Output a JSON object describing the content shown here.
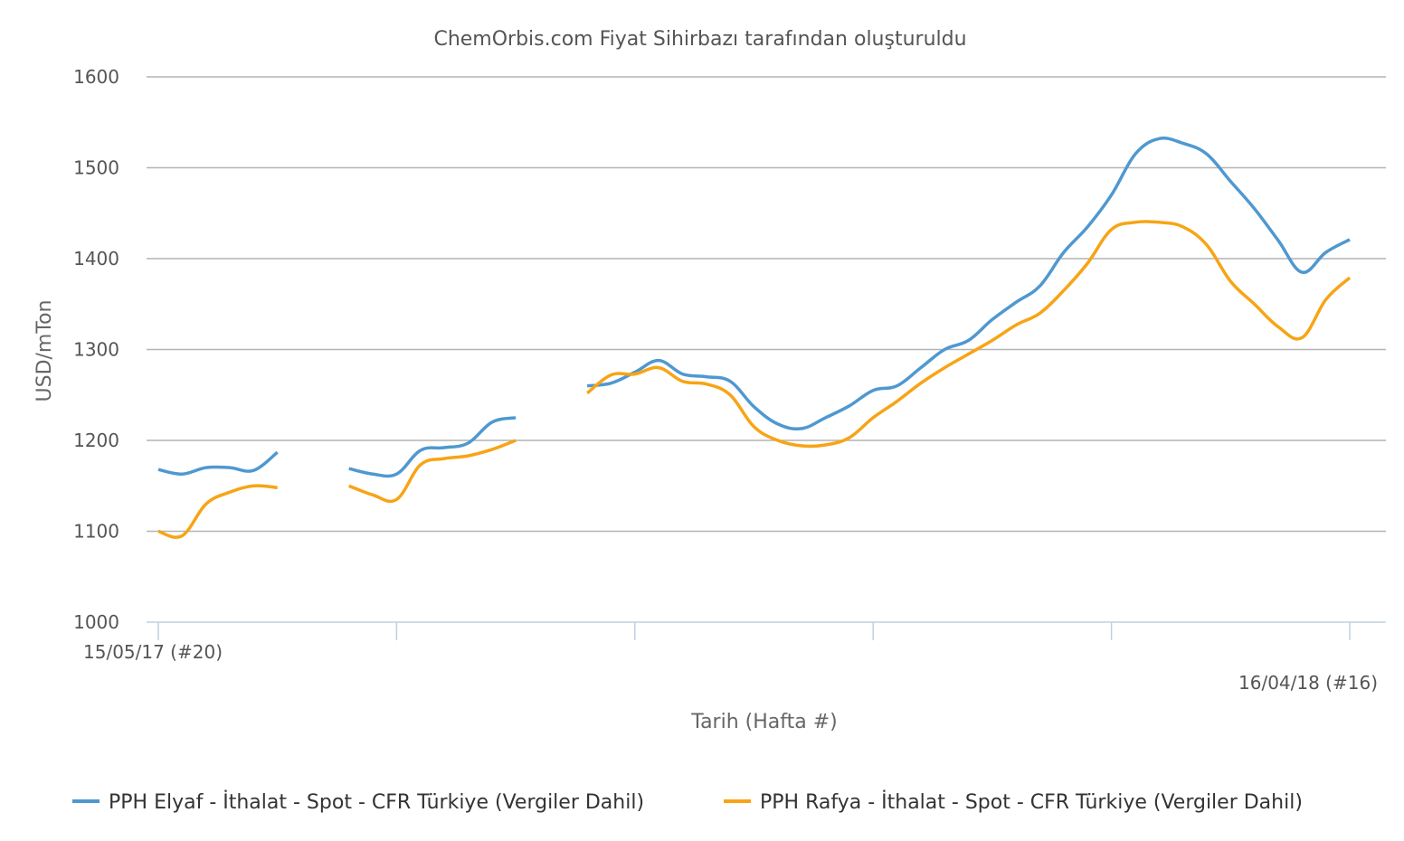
{
  "chart_data": {
    "type": "line",
    "title": "ChemOrbis.com Fiyat Sihirbazı tarafından oluşturuldu",
    "xlabel": "Tarih (Hafta #)",
    "ylabel": "USD/mTon",
    "ylim": [
      1000,
      1600
    ],
    "yticks": [
      "1000",
      "1100",
      "1200",
      "1300",
      "1400",
      "1500",
      "1600"
    ],
    "x_start_label": "15/05/17 (#20)",
    "x_end_label": "16/04/18 (#16)",
    "x": [
      0,
      1,
      2,
      3,
      4,
      5,
      6,
      7,
      8,
      9,
      10,
      11,
      12,
      13,
      14,
      15,
      16,
      17,
      18,
      19,
      20,
      21,
      22,
      23,
      24,
      25,
      26,
      27,
      28,
      29,
      30,
      31,
      32,
      33,
      34,
      35,
      36,
      37,
      38,
      39,
      40,
      41,
      42,
      43,
      44,
      45,
      46,
      47,
      48,
      49,
      50
    ],
    "grid": true,
    "legend_position": "bottom",
    "series": [
      {
        "name": "PPH Elyaf - İthalat - Spot - CFR Türkiye (Vergiler Dahil)",
        "color": "#4f98d0",
        "values": [
          1168,
          1163,
          1170,
          1170,
          1167,
          1187,
          null,
          null,
          1169,
          1163,
          1163,
          1189,
          1192,
          1197,
          1220,
          1225,
          null,
          null,
          1260,
          1263,
          1275,
          1288,
          1273,
          1270,
          1265,
          1237,
          1218,
          1213,
          1225,
          1238,
          1255,
          1260,
          1280,
          1300,
          1310,
          1333,
          1352,
          1370,
          1407,
          1435,
          1470,
          1515,
          1532,
          1527,
          1515,
          1485,
          1455,
          1420,
          1385,
          1407,
          1421
        ]
      },
      {
        "name": "PPH Rafya - İthalat - Spot - CFR Türkiye (Vergiler Dahil)",
        "color": "#f7a415",
        "values": [
          1100,
          1095,
          1130,
          1143,
          1150,
          1148,
          null,
          null,
          1150,
          1140,
          1135,
          1173,
          1180,
          1183,
          1190,
          1200,
          null,
          null,
          1252,
          1272,
          1273,
          1280,
          1265,
          1262,
          1250,
          1215,
          1200,
          1194,
          1195,
          1203,
          1225,
          1243,
          1263,
          1280,
          1295,
          1310,
          1327,
          1340,
          1365,
          1395,
          1432,
          1440,
          1440,
          1435,
          1415,
          1375,
          1350,
          1325,
          1313,
          1355,
          1379
        ]
      }
    ]
  }
}
